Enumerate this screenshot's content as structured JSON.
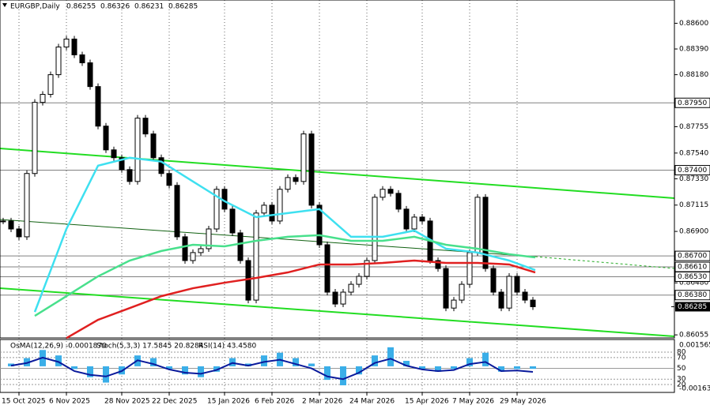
{
  "chart_data": [
    {
      "type": "candlestick",
      "title": "EURGBP,Daily",
      "ohlc": [
        0.86255,
        0.86326,
        0.86231,
        0.86285
      ],
      "values": [
        0.86985,
        0.8692,
        0.86856,
        0.87373,
        0.87954,
        0.88019,
        0.8818,
        0.88406,
        0.88471,
        0.88342,
        0.88277,
        0.88083,
        0.8776,
        0.87566,
        0.87502,
        0.87405,
        0.87308,
        0.87825,
        0.87696,
        0.87502,
        0.87373,
        0.87276,
        0.86856,
        0.86662,
        0.86727,
        0.86759,
        0.8692,
        0.87244,
        0.87082,
        0.86888,
        0.86662,
        0.86339,
        0.8705,
        0.87114,
        0.86985,
        0.87244,
        0.8734,
        0.87308,
        0.87696,
        0.87114,
        0.86791,
        0.86404,
        0.86307,
        0.86404,
        0.86468,
        0.86533,
        0.86662,
        0.87179,
        0.87244,
        0.87211,
        0.87082,
        0.8692,
        0.87017,
        0.86985,
        0.86662,
        0.86597,
        0.86274,
        0.86339,
        0.86468,
        0.86727,
        0.87179,
        0.86597,
        0.86404,
        0.86274,
        0.86533,
        0.86404,
        0.86339,
        0.86285
      ],
      "series": [
        {
          "color": "#3ee0f0",
          "x": [
            4,
            8,
            12,
            16,
            20,
            24,
            28,
            32,
            36,
            40,
            44,
            48,
            52,
            56,
            60,
            64,
            67.3
          ],
          "values": [
            0.86242,
            0.8692,
            0.87437,
            0.87502,
            0.8747,
            0.87308,
            0.87147,
            0.87017,
            0.8705,
            0.87082,
            0.86856,
            0.86856,
            0.86907,
            0.86759,
            0.86727,
            0.86662,
            0.86584
          ]
        },
        {
          "color": "#48e08c",
          "x": [
            4,
            8,
            12,
            16,
            20,
            24,
            28,
            32,
            36,
            40,
            44,
            48,
            52,
            56,
            60,
            64,
            67.3
          ],
          "values": [
            0.8621,
            0.86371,
            0.86533,
            0.86662,
            0.8674,
            0.86791,
            0.86778,
            0.86823,
            0.86856,
            0.86869,
            0.86823,
            0.86823,
            0.86856,
            0.86791,
            0.86759,
            0.86714,
            0.86688
          ]
        },
        {
          "color": "#e02020",
          "x": [
            8,
            12,
            16,
            20,
            24,
            28,
            32,
            36,
            40,
            44,
            48,
            52,
            56,
            60,
            64,
            67.3
          ],
          "values": [
            0.86029,
            0.86178,
            0.86274,
            0.86371,
            0.86436,
            0.86481,
            0.8652,
            0.86565,
            0.8663,
            0.8663,
            0.86643,
            0.86662,
            0.86643,
            0.86643,
            0.8663,
            0.86565
          ]
        }
      ],
      "ylim": [
        0.8603,
        0.8879
      ],
      "yticks": [
        {
          "value": 0.886,
          "label": "0.88600"
        },
        {
          "value": 0.8839,
          "label": "0.88390"
        },
        {
          "value": 0.8818,
          "label": "0.88180"
        },
        {
          "value": 0.87755,
          "label": "0.87755"
        },
        {
          "value": 0.8754,
          "label": "0.87540"
        },
        {
          "value": 0.8733,
          "label": "0.87330"
        },
        {
          "value": 0.87115,
          "label": "0.87115"
        },
        {
          "value": 0.869,
          "label": "0.86900"
        },
        {
          "value": 0.8648,
          "label": "0.86480"
        },
        {
          "value": 0.86055,
          "label": "0.86055"
        }
      ],
      "levels": [
        {
          "value": 0.8795,
          "label": "0.87950"
        },
        {
          "value": 0.874,
          "label": "0.87400"
        },
        {
          "value": 0.867,
          "label": "0.86700"
        },
        {
          "value": 0.8661,
          "label": "0.86610"
        },
        {
          "value": 0.8653,
          "label": "0.86530"
        },
        {
          "value": 0.8638,
          "label": "0.86380"
        }
      ],
      "current": {
        "value": 0.86285,
        "label": "0.86285"
      },
      "xticks": [
        {
          "value": 2,
          "label": "15 Oct 2025"
        },
        {
          "value": 8,
          "label": "6 Nov 2025"
        },
        {
          "value": 15,
          "label": "28 Nov 2025"
        },
        {
          "value": 21,
          "label": "22 Dec 2025"
        },
        {
          "value": 28,
          "label": "15 Jan 2026"
        },
        {
          "value": 34,
          "label": "6 Feb 2026"
        },
        {
          "value": 40,
          "label": "2 Mar 2026"
        },
        {
          "value": 46,
          "label": "24 Mar 2026"
        },
        {
          "value": 53,
          "label": "15 Apr 2026"
        },
        {
          "value": 59,
          "label": "7 May 2026"
        },
        {
          "value": 65,
          "label": "29 May 2026"
        }
      ]
    },
    {
      "type": "indicator",
      "labels": [
        "OsMA(12,26,9) -0.0001870",
        "Stoch(5,3,3) 17.5845 20.8284",
        "RSI(14) 43.4580"
      ],
      "x": [
        1,
        3,
        5,
        7,
        9,
        11,
        13,
        15,
        17,
        19,
        21,
        23,
        25,
        27,
        29,
        31,
        33,
        35,
        37,
        39,
        41,
        43,
        45,
        47,
        49,
        51,
        53,
        55,
        57,
        59,
        61,
        63,
        65,
        67
      ],
      "osma": {
        "color": "#3aaee8",
        "values": [
          0.0002,
          0.0006,
          0.0012,
          0.0008,
          -0.0002,
          -0.0008,
          -0.0012,
          -0.0006,
          0.0008,
          0.0006,
          -0.0002,
          -0.0006,
          -0.0008,
          -0.0004,
          0.0006,
          0.0002,
          0.0008,
          0.001,
          0.0006,
          0.0002,
          -0.001,
          -0.0014,
          -0.0006,
          0.0008,
          0.0014,
          0.0004,
          -0.0002,
          -0.0004,
          -0.0002,
          0.0006,
          0.001,
          -0.0004,
          -0.0002,
          -0.000187
        ]
      },
      "rsi": {
        "color": "#0a1a9c",
        "values": [
          55,
          60,
          70,
          62,
          45,
          38,
          35,
          45,
          65,
          58,
          48,
          42,
          40,
          47,
          60,
          55,
          62,
          66,
          58,
          50,
          35,
          30,
          42,
          60,
          68,
          55,
          48,
          45,
          47,
          58,
          62,
          45,
          46,
          43.458
        ]
      },
      "ylim": [
        -0.001634,
        0.001565
      ],
      "y2lim": [
        0,
        100
      ],
      "y2ticks": [
        80,
        70,
        50,
        30,
        20
      ]
    }
  ]
}
